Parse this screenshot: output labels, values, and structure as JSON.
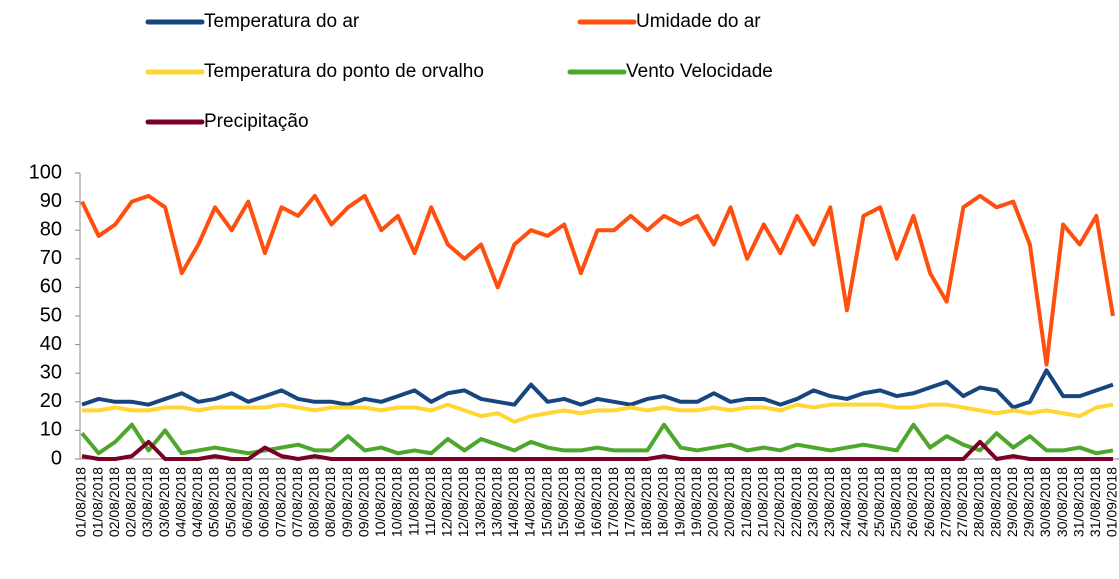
{
  "chart_data": {
    "type": "line",
    "categories": [
      "01/08/2018",
      "01/08/2018",
      "02/08/2018",
      "02/08/2018",
      "03/08/2018",
      "03/08/2018",
      "04/08/2018",
      "04/08/2018",
      "05/08/2018",
      "05/08/2018",
      "06/08/2018",
      "06/08/2018",
      "07/08/2018",
      "07/08/2018",
      "08/08/2018",
      "08/08/2018",
      "09/08/2018",
      "09/08/2018",
      "10/08/2018",
      "10/08/2018",
      "11/08/2018",
      "11/08/2018",
      "12/08/2018",
      "12/08/2018",
      "13/08/2018",
      "13/08/2018",
      "14/08/2018",
      "14/08/2018",
      "15/08/2018",
      "15/08/2018",
      "16/08/2018",
      "16/08/2018",
      "17/08/2018",
      "17/08/2018",
      "18/08/2018",
      "18/08/2018",
      "19/08/2018",
      "19/08/2018",
      "20/08/2018",
      "20/08/2018",
      "21/08/2018",
      "21/08/2018",
      "22/08/2018",
      "22/08/2018",
      "23/08/2018",
      "23/08/2018",
      "24/08/2018",
      "24/08/2018",
      "25/08/2018",
      "25/08/2018",
      "26/08/2018",
      "26/08/2018",
      "27/08/2018",
      "27/08/2018",
      "28/08/2018",
      "28/08/2018",
      "29/08/2018",
      "29/08/2018",
      "30/08/2018",
      "30/08/2018",
      "31/08/2018",
      "31/08/2018",
      "01/09/2018"
    ],
    "series": [
      {
        "name": "Temperatura do ar",
        "color": "#17467f",
        "values": [
          19,
          21,
          20,
          20,
          19,
          21,
          23,
          20,
          21,
          23,
          20,
          22,
          24,
          21,
          20,
          20,
          19,
          21,
          20,
          22,
          24,
          20,
          23,
          24,
          21,
          20,
          19,
          26,
          20,
          21,
          19,
          21,
          20,
          19,
          21,
          22,
          20,
          20,
          23,
          20,
          21,
          21,
          19,
          21,
          24,
          22,
          21,
          23,
          24,
          22,
          23,
          25,
          27,
          22,
          25,
          24,
          18,
          20,
          31,
          22,
          22,
          24,
          26
        ]
      },
      {
        "name": "Umidade do ar",
        "color": "#ff4f0f",
        "values": [
          90,
          78,
          82,
          90,
          92,
          88,
          65,
          75,
          88,
          80,
          90,
          72,
          88,
          85,
          92,
          82,
          88,
          92,
          80,
          85,
          72,
          88,
          75,
          70,
          75,
          60,
          75,
          80,
          78,
          82,
          65,
          80,
          80,
          85,
          80,
          85,
          82,
          85,
          75,
          88,
          70,
          82,
          72,
          85,
          75,
          88,
          52,
          85,
          88,
          70,
          85,
          65,
          55,
          88,
          92,
          88,
          90,
          75,
          33,
          82,
          75,
          85,
          50
        ]
      },
      {
        "name": "Temperatura do ponto de orvalho",
        "color": "#ffd633",
        "values": [
          17,
          17,
          18,
          17,
          17,
          18,
          18,
          17,
          18,
          18,
          18,
          18,
          19,
          18,
          17,
          18,
          18,
          18,
          17,
          18,
          18,
          17,
          19,
          17,
          15,
          16,
          13,
          15,
          16,
          17,
          16,
          17,
          17,
          18,
          17,
          18,
          17,
          17,
          18,
          17,
          18,
          18,
          17,
          19,
          18,
          19,
          19,
          19,
          19,
          18,
          18,
          19,
          19,
          18,
          17,
          16,
          17,
          16,
          17,
          16,
          15,
          18,
          19
        ]
      },
      {
        "name": "Vento Velocidade",
        "color": "#4ea72c",
        "values": [
          9,
          2,
          6,
          12,
          3,
          10,
          2,
          3,
          4,
          3,
          2,
          3,
          4,
          5,
          3,
          3,
          8,
          3,
          4,
          2,
          3,
          2,
          7,
          3,
          7,
          5,
          3,
          6,
          4,
          3,
          3,
          4,
          3,
          3,
          3,
          12,
          4,
          3,
          4,
          5,
          3,
          4,
          3,
          5,
          4,
          3,
          4,
          5,
          4,
          3,
          12,
          4,
          8,
          5,
          3,
          9,
          4,
          8,
          3,
          3,
          4,
          2,
          3
        ]
      },
      {
        "name": "Precipitação",
        "color": "#7b0025",
        "values": [
          1,
          0,
          0,
          1,
          6,
          0,
          0,
          0,
          1,
          0,
          0,
          4,
          1,
          0,
          1,
          0,
          0,
          0,
          0,
          0,
          0,
          0,
          0,
          0,
          0,
          0,
          0,
          0,
          0,
          0,
          0,
          0,
          0,
          0,
          0,
          1,
          0,
          0,
          0,
          0,
          0,
          0,
          0,
          0,
          0,
          0,
          0,
          0,
          0,
          0,
          0,
          0,
          0,
          0,
          6,
          0,
          1,
          0,
          0,
          0,
          0,
          0,
          0
        ]
      }
    ],
    "ylim": [
      0,
      100
    ],
    "yticks": [
      0,
      10,
      20,
      30,
      40,
      50,
      60,
      70,
      80,
      90,
      100
    ],
    "grid": false,
    "legend": "top"
  }
}
